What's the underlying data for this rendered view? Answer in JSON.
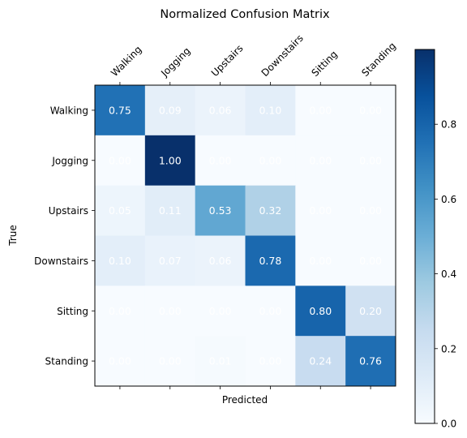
{
  "chart_data": {
    "type": "heatmap",
    "title": "Normalized Confusion Matrix",
    "xlabel": "Predicted",
    "ylabel": "True",
    "x_categories": [
      "Walking",
      "Jogging",
      "Upstairs",
      "Downstairs",
      "Sitting",
      "Standing"
    ],
    "y_categories": [
      "Walking",
      "Jogging",
      "Upstairs",
      "Downstairs",
      "Sitting",
      "Standing"
    ],
    "values": [
      [
        0.75,
        0.09,
        0.06,
        0.1,
        0.0,
        0.0
      ],
      [
        0.0,
        1.0,
        0.0,
        0.0,
        0.0,
        0.0
      ],
      [
        0.05,
        0.11,
        0.53,
        0.32,
        0.0,
        0.0
      ],
      [
        0.1,
        0.07,
        0.06,
        0.78,
        0.0,
        0.0
      ],
      [
        0.0,
        0.0,
        0.0,
        0.0,
        0.8,
        0.2
      ],
      [
        0.0,
        0.0,
        0.01,
        0.0,
        0.24,
        0.76
      ]
    ],
    "value_format": "0.00",
    "colormap": "Blues",
    "color_range": [
      0.0,
      1.0
    ],
    "colorbar": {
      "ticks": [
        0.0,
        0.2,
        0.4,
        0.6,
        0.8
      ],
      "tick_labels": [
        "0.0",
        "0.2",
        "0.4",
        "0.6",
        "0.8"
      ]
    },
    "label_color": "#ffffff",
    "grid": false
  }
}
